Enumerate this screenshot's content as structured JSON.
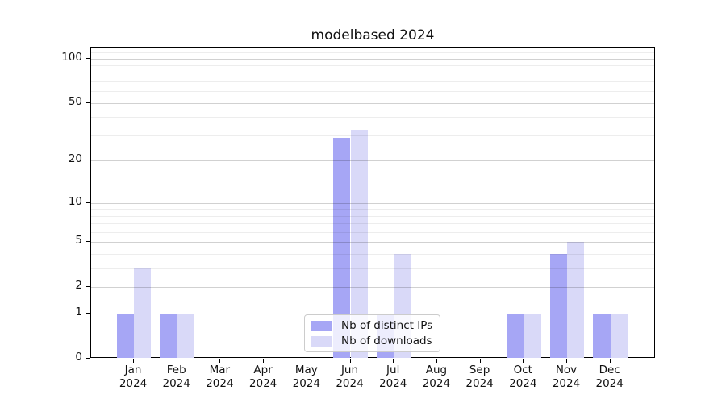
{
  "chart_data": {
    "type": "bar",
    "title": "modelbased 2024",
    "categories": [
      "Jan 2024",
      "Feb 2024",
      "Mar 2024",
      "Apr 2024",
      "May 2024",
      "Jun 2024",
      "Jul 2024",
      "Aug 2024",
      "Sep 2024",
      "Oct 2024",
      "Nov 2024",
      "Dec 2024"
    ],
    "x_tick_month_labels": [
      "Jan",
      "Feb",
      "Mar",
      "Apr",
      "May",
      "Jun",
      "Jul",
      "Aug",
      "Sep",
      "Oct",
      "Nov",
      "Dec"
    ],
    "x_tick_year_label": "2024",
    "series": [
      {
        "name": "Nb of distinct IPs",
        "color": "#a6a6f5",
        "values": [
          1,
          1,
          0,
          0,
          0,
          29,
          1,
          0,
          0,
          1,
          4,
          1
        ]
      },
      {
        "name": "Nb of downloads",
        "color": "#d9d9f8",
        "values": [
          3,
          1,
          0,
          0,
          0,
          33,
          4,
          0,
          0,
          1,
          5,
          1
        ]
      }
    ],
    "y_axis": {
      "scale": "log1p",
      "tick_values": [
        100,
        50,
        20,
        10,
        5,
        2,
        1,
        0
      ],
      "tick_labels": [
        "100",
        "50",
        "20",
        "10",
        "5",
        "2",
        "1",
        "0"
      ],
      "minor_gridline_values": [
        3,
        4,
        6,
        7,
        8,
        9,
        30,
        40,
        60,
        70,
        80,
        90,
        110
      ],
      "max_value": 118
    },
    "legend": {
      "position": "lower center",
      "entries": [
        "Nb of distinct IPs",
        "Nb of downloads"
      ]
    },
    "grid": true,
    "background": "#ffffff"
  }
}
